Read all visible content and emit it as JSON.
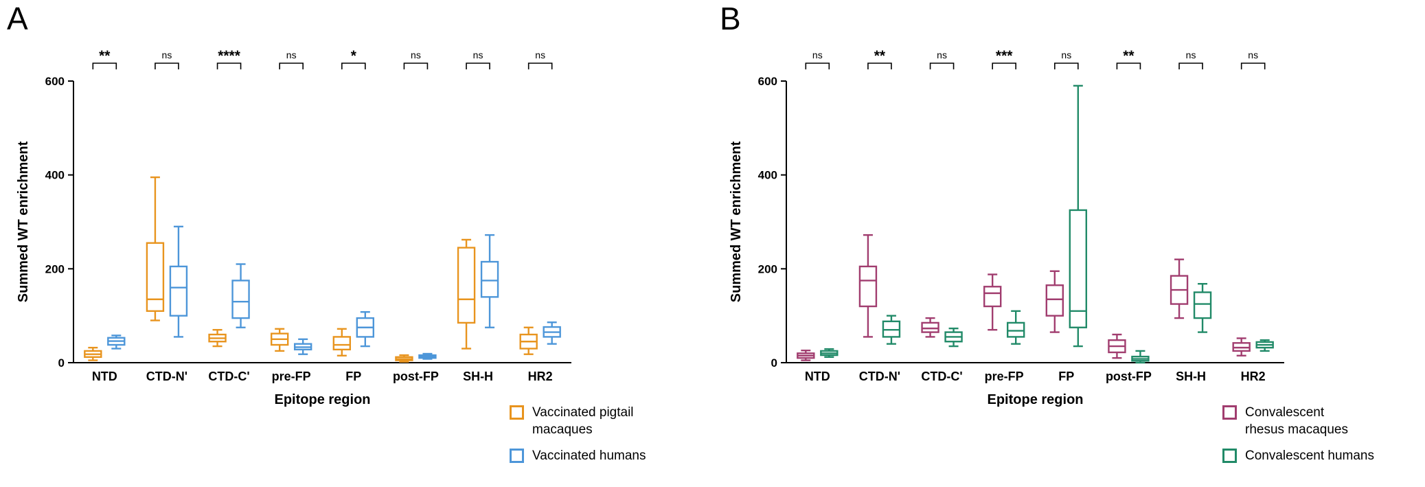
{
  "figure": {
    "background": "#ffffff",
    "box_value_order": [
      "whisker_min",
      "q1",
      "median",
      "q3",
      "whisker_max"
    ]
  },
  "chart_data": [
    {
      "type": "grouped_boxplot",
      "panel_label": "A",
      "xlabel": "Epitope region",
      "ylabel": "Summed WT enrichment",
      "ylim": [
        0,
        600
      ],
      "yticks": [
        0,
        200,
        400,
        600
      ],
      "grid": false,
      "legend_position": "bottom-right",
      "categories": [
        "NTD",
        "CTD-N'",
        "CTD-C'",
        "pre-FP",
        "FP",
        "post-FP",
        "SH-H",
        "HR2"
      ],
      "significance": [
        "**",
        "ns",
        "****",
        "ns",
        "*",
        "ns",
        "ns",
        "ns"
      ],
      "series": [
        {
          "name": "Vaccinated pigtail macaques",
          "legend_lines": [
            "Vaccinated pigtail",
            "macaques"
          ],
          "color": "#E8941E",
          "boxes": [
            [
              5,
              12,
              18,
              25,
              32
            ],
            [
              90,
              110,
              135,
              255,
              395
            ],
            [
              35,
              45,
              52,
              60,
              70
            ],
            [
              25,
              38,
              50,
              62,
              72
            ],
            [
              15,
              28,
              38,
              55,
              72
            ],
            [
              2,
              5,
              8,
              12,
              16
            ],
            [
              30,
              85,
              135,
              245,
              262
            ],
            [
              18,
              30,
              45,
              60,
              75
            ]
          ]
        },
        {
          "name": "Vaccinated humans",
          "legend_lines": [
            "Vaccinated humans"
          ],
          "color": "#4D96D9",
          "boxes": [
            [
              30,
              38,
              46,
              53,
              58
            ],
            [
              55,
              100,
              160,
              205,
              290
            ],
            [
              75,
              95,
              130,
              175,
              210
            ],
            [
              18,
              28,
              33,
              40,
              50
            ],
            [
              35,
              55,
              75,
              95,
              108
            ],
            [
              8,
              10,
              13,
              16,
              19
            ],
            [
              75,
              140,
              175,
              215,
              272
            ],
            [
              40,
              55,
              65,
              76,
              86
            ]
          ]
        }
      ]
    },
    {
      "type": "grouped_boxplot",
      "panel_label": "B",
      "xlabel": "Epitope region",
      "ylabel": "Summed WT enrichment",
      "ylim": [
        0,
        600
      ],
      "yticks": [
        0,
        200,
        400,
        600
      ],
      "grid": false,
      "legend_position": "bottom-right",
      "categories": [
        "NTD",
        "CTD-N'",
        "CTD-C'",
        "pre-FP",
        "FP",
        "post-FP",
        "SH-H",
        "HR2"
      ],
      "significance": [
        "ns",
        "**",
        "ns",
        "***",
        "ns",
        "**",
        "ns",
        "ns"
      ],
      "series": [
        {
          "name": "Convalescent rhesus macaques",
          "legend_lines": [
            "Convalescent",
            "rhesus macaques"
          ],
          "color": "#A13D6F",
          "boxes": [
            [
              5,
              10,
              15,
              20,
              26
            ],
            [
              55,
              120,
              175,
              205,
              272
            ],
            [
              55,
              65,
              73,
              85,
              95
            ],
            [
              70,
              120,
              148,
              162,
              188
            ],
            [
              65,
              100,
              135,
              165,
              195
            ],
            [
              10,
              22,
              35,
              48,
              60
            ],
            [
              95,
              125,
              155,
              185,
              220
            ],
            [
              15,
              25,
              32,
              42,
              52
            ]
          ]
        },
        {
          "name": "Convalescent humans",
          "legend_lines": [
            "Convalescent humans"
          ],
          "color": "#218A68",
          "boxes": [
            [
              12,
              16,
              20,
              25,
              29
            ],
            [
              40,
              55,
              70,
              88,
              100
            ],
            [
              35,
              45,
              55,
              65,
              73
            ],
            [
              40,
              55,
              68,
              85,
              110
            ],
            [
              35,
              75,
              110,
              325,
              590
            ],
            [
              0,
              4,
              8,
              13,
              25
            ],
            [
              65,
              95,
              125,
              150,
              168
            ],
            [
              25,
              32,
              38,
              44,
              48
            ]
          ]
        }
      ]
    }
  ]
}
